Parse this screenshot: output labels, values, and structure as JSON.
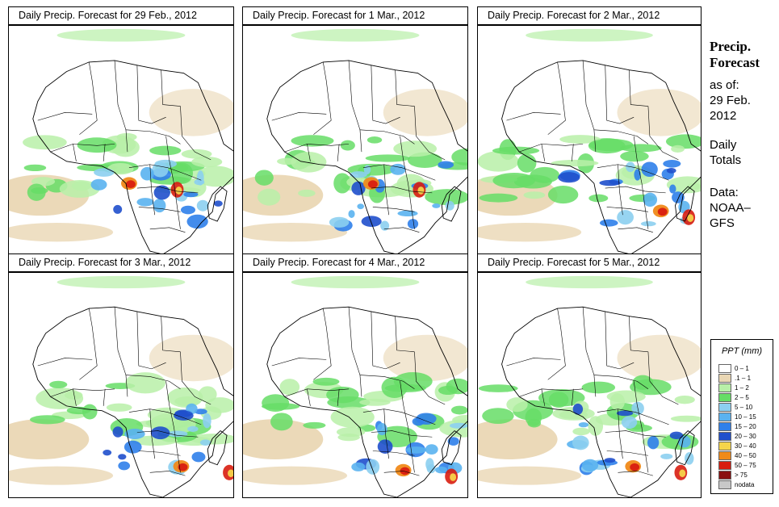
{
  "panels": [
    {
      "title": "Daily Precip. Forecast for  29 Feb., 2012"
    },
    {
      "title": "Daily Precip. Forecast for  1 Mar., 2012"
    },
    {
      "title": "Daily Precip. Forecast for  2 Mar., 2012"
    },
    {
      "title": "Daily Precip. Forecast for  3 Mar., 2012"
    },
    {
      "title": "Daily Precip. Forecast for  4 Mar., 2012"
    },
    {
      "title": "Daily Precip. Forecast for  5 Mar., 2012"
    }
  ],
  "sidebar": {
    "title_line1": "Precip.",
    "title_line2": "Forecast",
    "asof_line1": "as of:",
    "asof_line2": "29 Feb.",
    "asof_line3": "2012",
    "totals_line1": "Daily",
    "totals_line2": "Totals",
    "data_line1": "Data:",
    "data_line2": "NOAA–",
    "data_line3": "GFS"
  },
  "legend": {
    "title": "PPT (mm)",
    "items": [
      {
        "label": "0 – 1",
        "color": "#ffffff"
      },
      {
        "label": ".1 – 1",
        "color": "#ead7b4"
      },
      {
        "label": "1 – 2",
        "color": "#b8f0a8"
      },
      {
        "label": "2 – 5",
        "color": "#66dd66"
      },
      {
        "label": "5 – 10",
        "color": "#8ccff0"
      },
      {
        "label": "10 – 15",
        "color": "#5ab2f0"
      },
      {
        "label": "15 – 20",
        "color": "#2f80ea"
      },
      {
        "label": "20 – 30",
        "color": "#1f4fcc"
      },
      {
        "label": "30 – 40",
        "color": "#f5d44a"
      },
      {
        "label": "40 – 50",
        "color": "#f08a1a"
      },
      {
        "label": "50 – 75",
        "color": "#d81d10"
      },
      {
        "label": "> 75",
        "color": "#8a1010"
      },
      {
        "label": "nodata",
        "color": "#c8c8c8"
      }
    ]
  }
}
